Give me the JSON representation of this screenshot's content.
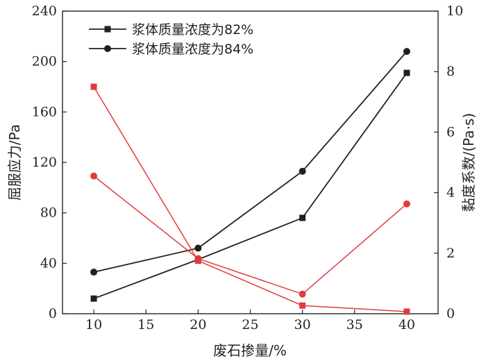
{
  "chart_data": {
    "type": "line",
    "x": [
      10,
      20,
      30,
      40
    ],
    "xlim": [
      7,
      43
    ],
    "xticks": [
      10,
      15,
      20,
      25,
      30,
      35,
      40
    ],
    "xlabel": "废石掺量/%",
    "ylabel": "屈服应力/Pa",
    "ylim": [
      0,
      240
    ],
    "yticks": [
      0,
      40,
      80,
      120,
      160,
      200,
      240
    ],
    "y2label": "黏度系数/(Pa·s)",
    "y2lim": [
      0,
      10
    ],
    "y2ticks": [
      0,
      2,
      4,
      6,
      8,
      10
    ],
    "legend_position": "top-left",
    "series": [
      {
        "name": "浆体质量浓度为82%",
        "axis": "left",
        "marker": "square",
        "color": "#231f20",
        "values": [
          12,
          43,
          76,
          191
        ]
      },
      {
        "name": "浆体质量浓度为84%",
        "axis": "left",
        "marker": "circle",
        "color": "#231f20",
        "values": [
          33,
          52,
          113,
          208
        ]
      },
      {
        "axis": "right",
        "marker": "square",
        "color": "#e03a3e",
        "values": [
          7.5,
          1.75,
          0.27,
          0.07
        ]
      },
      {
        "axis": "right",
        "marker": "circle",
        "color": "#e03a3e",
        "values": [
          4.55,
          1.82,
          0.65,
          3.63
        ]
      }
    ]
  }
}
